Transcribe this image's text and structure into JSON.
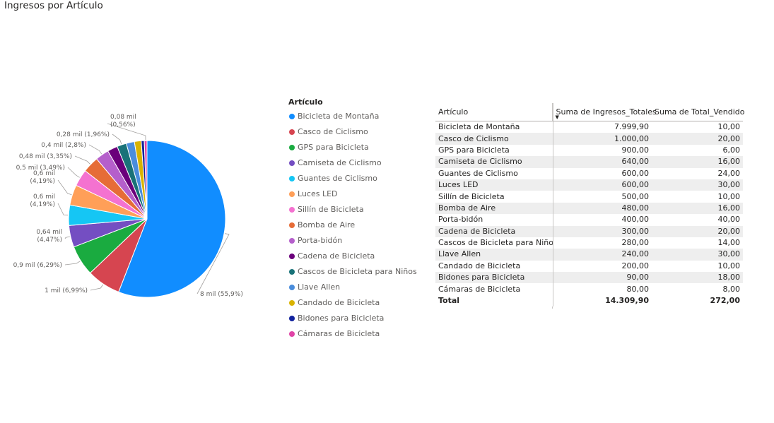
{
  "title": "Ingresos por Artículo",
  "chart_data": {
    "type": "pie",
    "title": "Ingresos por Artículo",
    "legend_title": "Artículo",
    "legend_position": "right",
    "slices": [
      {
        "name": "Bicicleta de Montaña",
        "value": 7999.9,
        "label": "8 mil (55,9%)",
        "color": "#118DFF"
      },
      {
        "name": "Casco de Ciclismo",
        "value": 1000.0,
        "label": "1 mil (6,99%)",
        "color": "#D64550"
      },
      {
        "name": "GPS para Bicicleta",
        "value": 900.0,
        "label": "0,9 mil (6,29%)",
        "color": "#1AAB40"
      },
      {
        "name": "Camiseta de Ciclismo",
        "value": 640.0,
        "label": "0,64 mil (4,47%)",
        "color": "#744EC2"
      },
      {
        "name": "Guantes de Ciclismo",
        "value": 600.0,
        "label": "0,6 mil (4,19%)",
        "color": "#15C6F4"
      },
      {
        "name": "Luces LED",
        "value": 600.0,
        "label": "0,6 mil (4,19%)",
        "color": "#FF9F58"
      },
      {
        "name": "Sillín de Bicicleta",
        "value": 500.0,
        "label": "0,5 mil (3,49%)",
        "color": "#F472D0"
      },
      {
        "name": "Bomba de Aire",
        "value": 480.0,
        "label": "0,48 mil (3,35%)",
        "color": "#E66C37"
      },
      {
        "name": "Porta-bidón",
        "value": 400.0,
        "label": "0,4 mil (2,8%)",
        "color": "#B55FCB"
      },
      {
        "name": "Cadena de Bicicleta",
        "value": 300.0,
        "label": "",
        "color": "#6B007B"
      },
      {
        "name": "Cascos de Bicicleta para Niños",
        "value": 280.0,
        "label": "0,28 mil (1,96%)",
        "color": "#197278"
      },
      {
        "name": "Llave Allen",
        "value": 240.0,
        "label": "",
        "color": "#4A8DDC"
      },
      {
        "name": "Candado de Bicicleta",
        "value": 200.0,
        "label": "",
        "color": "#D9B300"
      },
      {
        "name": "Bidones para Bicicleta",
        "value": 90.0,
        "label": "",
        "color": "#12239E"
      },
      {
        "name": "Cámaras de Bicicleta",
        "value": 80.0,
        "label": "0,08 mil (0,56%)",
        "color": "#E044A7"
      }
    ]
  },
  "table": {
    "headers": [
      "Artículo",
      "Suma de Ingresos_Totales",
      "Suma de Total_Vendido"
    ],
    "rows": [
      [
        "Bicicleta de Montaña",
        "7.999,90",
        "10,00"
      ],
      [
        "Casco de Ciclismo",
        "1.000,00",
        "20,00"
      ],
      [
        "GPS para Bicicleta",
        "900,00",
        "6,00"
      ],
      [
        "Camiseta de Ciclismo",
        "640,00",
        "16,00"
      ],
      [
        "Guantes de Ciclismo",
        "600,00",
        "24,00"
      ],
      [
        "Luces LED",
        "600,00",
        "30,00"
      ],
      [
        "Sillín de Bicicleta",
        "500,00",
        "10,00"
      ],
      [
        "Bomba de Aire",
        "480,00",
        "16,00"
      ],
      [
        "Porta-bidón",
        "400,00",
        "40,00"
      ],
      [
        "Cadena de Bicicleta",
        "300,00",
        "20,00"
      ],
      [
        "Cascos de Bicicleta para Niños",
        "280,00",
        "14,00"
      ],
      [
        "Llave Allen",
        "240,00",
        "30,00"
      ],
      [
        "Candado de Bicicleta",
        "200,00",
        "10,00"
      ],
      [
        "Bidones para Bicicleta",
        "90,00",
        "18,00"
      ],
      [
        "Cámaras de Bicicleta",
        "80,00",
        "8,00"
      ]
    ],
    "total": [
      "Total",
      "14.309,90",
      "272,00"
    ],
    "sorted_column": "Suma de Ingresos_Totales",
    "sort_direction": "descending"
  }
}
